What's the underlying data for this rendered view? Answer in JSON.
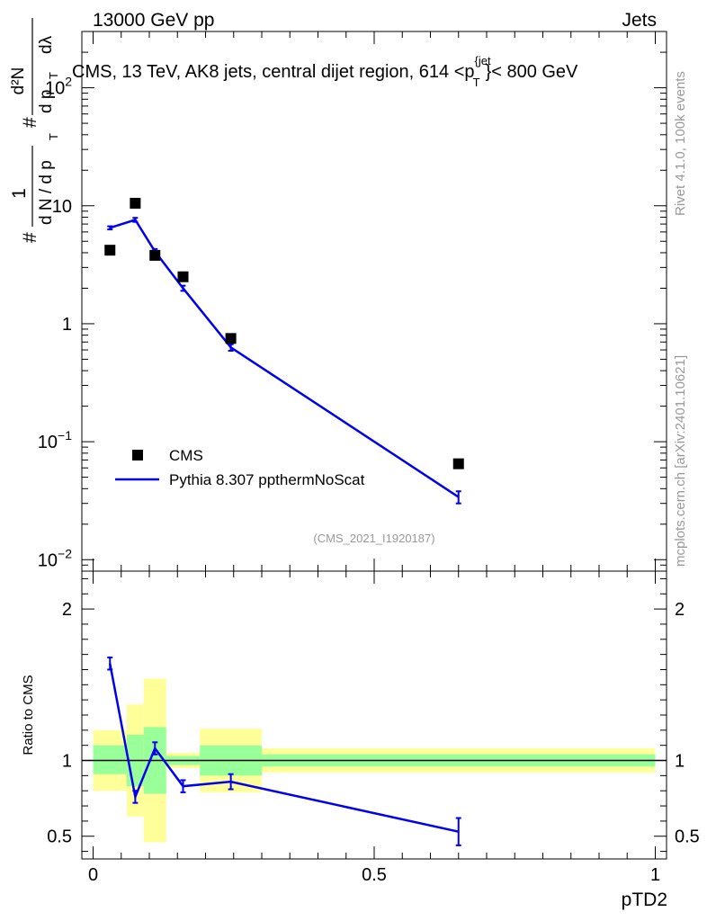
{
  "header": {
    "left_label": "13000 GeV pp",
    "right_label": "Jets"
  },
  "side_labels": {
    "rivet": "Rivet 4.1.0,  100k events",
    "mcplots": "mcplots.cern.ch [arXiv:2401.10621]"
  },
  "colors": {
    "data_marker": "#000000",
    "mc_line": "#0000ee",
    "band_inner": "#99ff99",
    "band_outer": "#ffff99"
  },
  "chart_data": [
    {
      "type": "line",
      "title_parts": {
        "before": "CMS, 13 TeV, AK8 jets, central dijet region, 614 <p",
        "sup": "{jet",
        "sub": "T",
        "after": "}< 800 GeV"
      },
      "ylabel_parts": {
        "hash": "#",
        "frac_num": "1",
        "frac_den": "d N / d p",
        "frac_den_sub": "T",
        "hash2": "#",
        "deriv_num": "d²N",
        "deriv_den": "d p",
        "deriv_den_sub": "T",
        "deriv_tail": "dλ"
      },
      "yscale": "log",
      "ylim": [
        0.008,
        300
      ],
      "xlim": [
        -0.02,
        1.02
      ],
      "y_tick_labels": [
        {
          "base": "10",
          "exp": "−2",
          "value": 0.01
        },
        {
          "base": "10",
          "exp": "−1",
          "value": 0.1
        },
        {
          "base": "1",
          "exp": "",
          "value": 1
        },
        {
          "base": "10",
          "exp": "",
          "value": 10
        },
        {
          "base": "10",
          "exp": "2",
          "value": 100
        }
      ],
      "watermark": "(CMS_2021_I1920187)",
      "legend_position": "bottom-left",
      "series": [
        {
          "name": "CMS",
          "kind": "data",
          "x": [
            0.03,
            0.075,
            0.11,
            0.16,
            0.245,
            0.65
          ],
          "y": [
            4.2,
            10.5,
            3.8,
            2.5,
            0.75,
            0.065
          ]
        },
        {
          "name": "Pythia 8.307 ppthermNoScat",
          "kind": "mc",
          "x": [
            0.03,
            0.075,
            0.11,
            0.16,
            0.245,
            0.65
          ],
          "y": [
            6.5,
            7.6,
            4.1,
            2.0,
            0.63,
            0.034
          ],
          "yerr_low": [
            0.2,
            0.3,
            0.2,
            0.1,
            0.04,
            0.004
          ],
          "yerr_high": [
            0.2,
            0.3,
            0.2,
            0.1,
            0.04,
            0.004
          ]
        }
      ]
    },
    {
      "type": "line",
      "ylabel": "Ratio to CMS",
      "xlabel": "pTD2",
      "ylim": [
        0.35,
        2.25
      ],
      "xlim": [
        -0.02,
        1.02
      ],
      "y_ticks": [
        0.5,
        1,
        2
      ],
      "y_tick_labels": [
        "0.5",
        "1",
        "2"
      ],
      "x_ticks": [
        0,
        0.5,
        1
      ],
      "x_tick_labels": [
        "0",
        "0.5",
        "1"
      ],
      "bands": [
        {
          "x0": 0.0,
          "x1": 0.06,
          "inner": [
            0.91,
            1.1
          ],
          "outer": [
            0.8,
            1.2
          ]
        },
        {
          "x0": 0.06,
          "x1": 0.09,
          "inner": [
            0.83,
            1.17
          ],
          "outer": [
            0.63,
            1.37
          ]
        },
        {
          "x0": 0.09,
          "x1": 0.13,
          "inner": [
            0.78,
            1.22
          ],
          "outer": [
            0.46,
            1.54
          ]
        },
        {
          "x0": 0.13,
          "x1": 0.19,
          "inner": [
            0.97,
            1.03
          ],
          "outer": [
            0.95,
            1.05
          ]
        },
        {
          "x0": 0.19,
          "x1": 0.3,
          "inner": [
            0.9,
            1.1
          ],
          "outer": [
            0.79,
            1.21
          ]
        },
        {
          "x0": 0.3,
          "x1": 1.0,
          "inner": [
            0.96,
            1.04
          ],
          "outer": [
            0.92,
            1.08
          ]
        }
      ],
      "series": [
        {
          "name": "Pythia 8.307 ppthermNoScat",
          "x": [
            0.03,
            0.075,
            0.11,
            0.16,
            0.245,
            0.65
          ],
          "y": [
            1.64,
            0.76,
            1.08,
            0.83,
            0.86,
            0.53
          ],
          "yerr_low": [
            0.04,
            0.04,
            0.04,
            0.04,
            0.05,
            0.09
          ],
          "yerr_high": [
            0.04,
            0.04,
            0.04,
            0.04,
            0.05,
            0.09
          ]
        }
      ]
    }
  ]
}
